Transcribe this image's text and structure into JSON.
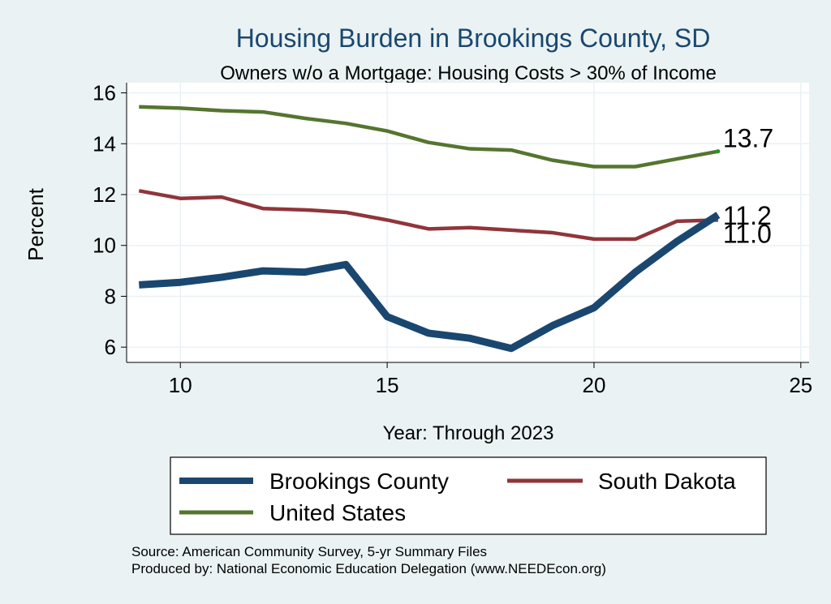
{
  "chart_data": {
    "type": "line",
    "title": "Housing Burden in Brookings County, SD",
    "subtitle": "Owners w/o a Mortgage: Housing Costs > 30% of Income",
    "xlabel": "Year: Through 2023",
    "ylabel": "Percent",
    "xlim": [
      8.7,
      25.2
    ],
    "ylim": [
      5.4,
      16.4
    ],
    "x_ticks": [
      10,
      15,
      20,
      25
    ],
    "y_ticks": [
      6,
      8,
      10,
      12,
      14,
      16
    ],
    "grid": true,
    "legend_position": "bottom",
    "x": [
      9,
      10,
      11,
      12,
      13,
      14,
      15,
      16,
      17,
      18,
      19,
      20,
      21,
      22,
      23
    ],
    "series": [
      {
        "name": "Brookings County",
        "color": "#1a476f",
        "line_weight": "thick",
        "values": [
          8.45,
          8.55,
          8.75,
          9.0,
          8.95,
          9.25,
          7.2,
          6.55,
          6.35,
          5.95,
          6.85,
          7.55,
          8.95,
          10.15,
          11.2
        ],
        "end_label": "11.2"
      },
      {
        "name": "South Dakota",
        "color": "#90353b",
        "line_weight": "medium",
        "values": [
          12.15,
          11.85,
          11.9,
          11.45,
          11.4,
          11.3,
          11.0,
          10.65,
          10.7,
          10.6,
          10.5,
          10.25,
          10.25,
          10.95,
          11.0
        ],
        "end_label": "11.0"
      },
      {
        "name": "United States",
        "color": "#55752f",
        "line_weight": "medium",
        "values": [
          15.45,
          15.4,
          15.3,
          15.25,
          15.0,
          14.8,
          14.5,
          14.05,
          13.8,
          13.75,
          13.35,
          13.1,
          13.1,
          13.4,
          13.7
        ],
        "end_label": "13.7"
      }
    ],
    "legend": [
      "Brookings County",
      "South Dakota",
      "United States"
    ]
  },
  "footer": {
    "source": "Source: American Community Survey, 5-yr Summary Files",
    "produced_by": "Produced by: National Economic Education Delegation (www.NEEDEcon.org)"
  },
  "colors": {
    "background": "#eaf2f3",
    "plot_background": "#ffffff",
    "grid": "#eaf2f3",
    "title": "#1a476f"
  }
}
